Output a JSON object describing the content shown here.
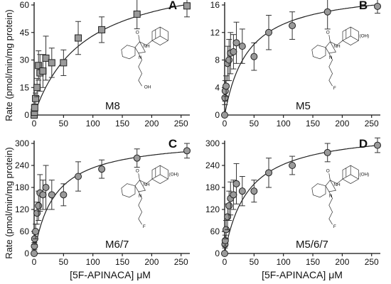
{
  "ylabel_top": "Rate (pmol/min/mg protein)",
  "ylabel_bottom": "Rate (pmol/min/mg protein)",
  "xlabel_left": "[5F-APINACA] μM",
  "xlabel_right": "[5F-APINACA] μM",
  "structure_labels": {
    "oh": "OH",
    "f": "F",
    "n": "N",
    "nh": "NH",
    "o": "O"
  },
  "colors": {
    "marker_fill": "#9a9a9a",
    "line": "#222222",
    "error_bar": "#333333"
  },
  "chart_data": [
    {
      "type": "scatter",
      "letter": "A",
      "metabolite": "M8",
      "marker": "square",
      "xlim": [
        0,
        260
      ],
      "ylim": [
        0,
        60
      ],
      "xticks": [
        0,
        50,
        100,
        150,
        200,
        250
      ],
      "yticks": [
        0,
        15,
        30,
        45,
        60
      ],
      "x": [
        0,
        0.5,
        1,
        2.5,
        5,
        7.5,
        10,
        15,
        20,
        30,
        50,
        75,
        115,
        175,
        260
      ],
      "y": [
        0,
        1.5,
        4,
        9,
        15,
        27,
        23,
        24,
        31,
        28.5,
        28.5,
        42,
        46.5,
        55,
        59.5
      ],
      "err": [
        0,
        1.5,
        2,
        3,
        5,
        8,
        10,
        9,
        12,
        8,
        7,
        9,
        7,
        8,
        6
      ],
      "fit": {
        "model": "michaelis-menten",
        "vmax": 80,
        "km": 85
      }
    },
    {
      "type": "scatter",
      "letter": "B",
      "metabolite": "M5",
      "marker": "circle",
      "xlim": [
        0,
        260
      ],
      "ylim": [
        0,
        16
      ],
      "xticks": [
        0,
        50,
        100,
        150,
        200,
        250
      ],
      "yticks": [
        0,
        4,
        8,
        12,
        16
      ],
      "x": [
        0,
        0.5,
        1,
        2.5,
        5,
        7.5,
        10,
        15,
        20,
        30,
        50,
        75,
        115,
        175,
        260
      ],
      "y": [
        0,
        2.5,
        3.5,
        4.2,
        7.5,
        8,
        9,
        9.2,
        10.5,
        10,
        8.5,
        12,
        13,
        15,
        15.8
      ],
      "err": [
        0,
        1,
        1.5,
        1.5,
        2.5,
        3,
        3,
        2.5,
        3,
        2.5,
        2,
        2.5,
        2,
        2.5,
        1
      ],
      "fit": {
        "model": "michaelis-menten",
        "vmax": 18.5,
        "km": 40
      }
    },
    {
      "type": "scatter",
      "letter": "C",
      "metabolite": "M6/7",
      "marker": "circle",
      "xlim": [
        0,
        260
      ],
      "ylim": [
        0,
        300
      ],
      "xticks": [
        0,
        50,
        100,
        150,
        200,
        250
      ],
      "yticks": [
        0,
        60,
        120,
        180,
        240,
        300
      ],
      "x": [
        0,
        0.5,
        1,
        2.5,
        5,
        7.5,
        10,
        15,
        20,
        30,
        50,
        75,
        115,
        175,
        260
      ],
      "y": [
        0,
        20,
        40,
        60,
        110,
        130,
        165,
        160,
        180,
        160,
        160,
        210,
        230,
        260,
        280
      ],
      "err": [
        0,
        10,
        15,
        20,
        30,
        40,
        50,
        40,
        60,
        40,
        30,
        40,
        25,
        25,
        20
      ],
      "fit": {
        "model": "michaelis-menten",
        "vmax": 315,
        "km": 35
      }
    },
    {
      "type": "scatter",
      "letter": "D",
      "metabolite": "M5/6/7",
      "marker": "circle",
      "xlim": [
        0,
        260
      ],
      "ylim": [
        0,
        300
      ],
      "xticks": [
        0,
        50,
        100,
        150,
        200,
        250
      ],
      "yticks": [
        0,
        60,
        120,
        180,
        240,
        300
      ],
      "x": [
        0,
        0.5,
        1,
        2.5,
        5,
        7.5,
        10,
        15,
        20,
        30,
        50,
        75,
        115,
        175,
        260
      ],
      "y": [
        0,
        25,
        35,
        65,
        100,
        130,
        150,
        160,
        190,
        170,
        170,
        220,
        240,
        275,
        295
      ],
      "err": [
        0,
        10,
        15,
        25,
        35,
        40,
        45,
        40,
        55,
        40,
        30,
        40,
        25,
        25,
        20
      ],
      "fit": {
        "model": "michaelis-menten",
        "vmax": 340,
        "km": 40
      }
    }
  ]
}
